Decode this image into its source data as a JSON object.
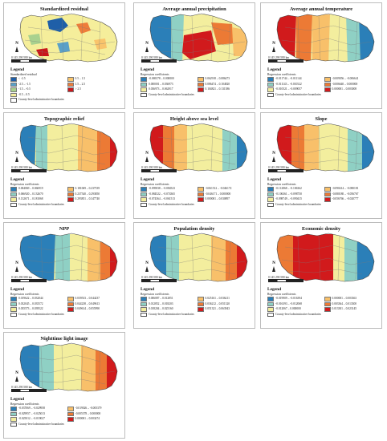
{
  "north_label": "N",
  "scale_label": "0 145 290      580 km",
  "legend_title": "Legend",
  "panels": [
    {
      "title": "Standardized residual",
      "subtitle": "Standardized residual",
      "classes": [
        {
          "label": "< -2.5",
          "color": "#1f5fa8"
        },
        {
          "label": "-2.5 – -1.5",
          "color": "#5aa0c8"
        },
        {
          "label": "-1.5 – -0.5",
          "color": "#a9d18e"
        },
        {
          "label": "-0.5 – 0.5",
          "color": "#f5ee9b"
        },
        {
          "label": "0.5 – 1.5",
          "color": "#f9c46b"
        },
        {
          "label": "1.5 – 2.5",
          "color": "#ee7d3b"
        },
        {
          "label": "> 2.5",
          "color": "#c9161b"
        }
      ],
      "county_label": "County-level administrative boundaries"
    },
    {
      "title": "Average annual precipitation",
      "subtitle": "Regression coefficients",
      "classes": [
        {
          "label": "-0.069378 – 0.000000",
          "color": "#2b7fb8"
        },
        {
          "label": "0.000001 – 0.036973",
          "color": "#8fd0c4"
        },
        {
          "label": "0.036973 – 0.062917",
          "color": "#f3ee9e"
        },
        {
          "label": "0.062918 – 0.086473",
          "color": "#f8c06a"
        },
        {
          "label": "0.086474 – 0.104820",
          "color": "#ec7a35"
        },
        {
          "label": "0.104821 – 0.131386",
          "color": "#d11a1c"
        }
      ],
      "county_label": "County-level administrative boundaries"
    },
    {
      "title": "Average annual temperature",
      "subtitle": "Regression coefficients",
      "classes": [
        {
          "label": "-0.011744 – -0.011144",
          "color": "#2b7fb8"
        },
        {
          "label": "-0.011143 – -0.010522",
          "color": "#8fd0c4"
        },
        {
          "label": "-0.010521 – -0.009057",
          "color": "#f3ee9e"
        },
        {
          "label": "-0.009056 – -0.006641",
          "color": "#f8c06a"
        },
        {
          "label": "-0.006640 – 0.000000",
          "color": "#ec7a35"
        },
        {
          "label": "0.000001 – 0.003008",
          "color": "#d11a1c"
        }
      ],
      "county_label": "County-level administrative boundaries"
    },
    {
      "title": "Topographic relief",
      "subtitle": "Regression coefficients",
      "classes": [
        {
          "label": "0.004069 – 0.066919",
          "color": "#2b7fb8"
        },
        {
          "label": "0.066920 – 0.132670",
          "color": "#8fd0c4"
        },
        {
          "label": "0.132671 – 0.181068",
          "color": "#f3ee9e"
        },
        {
          "label": "0.181069 – 0.237539",
          "color": "#f8c06a"
        },
        {
          "label": "0.237540 – 0.293850",
          "color": "#ec7a35"
        },
        {
          "label": "0.293851 – 0.347740",
          "color": "#d11a1c"
        }
      ],
      "county_label": "County-level administrative boundaries"
    },
    {
      "title": "Height above sea level",
      "subtitle": "Regression coefficients",
      "classes": [
        {
          "label": "-0.095838 – -0.084523",
          "color": "#2b7fb8"
        },
        {
          "label": "-0.084522 – -0.074365",
          "color": "#8fd0c4"
        },
        {
          "label": "-0.074364 – -0.061513",
          "color": "#f3ee9e"
        },
        {
          "label": "-0.061512 – -0.046172",
          "color": "#f8c06a"
        },
        {
          "label": "-0.046171 – 0.000000",
          "color": "#ec7a35"
        },
        {
          "label": "0.000001 – 0.030897",
          "color": "#d11a1c"
        }
      ],
      "county_label": "County-level administrative boundaries"
    },
    {
      "title": "Slope",
      "subtitle": "Regression coefficients",
      "classes": [
        {
          "label": "-0.112868 – -0.106362",
          "color": "#2b7fb8"
        },
        {
          "label": "-0.106361 – -0.098750",
          "color": "#8fd0c4"
        },
        {
          "label": "-0.098749 – -0.090415",
          "color": "#f3ee9e"
        },
        {
          "label": "-0.090414 – -0.080181",
          "color": "#f8c06a"
        },
        {
          "label": "-0.080180 – -0.056767",
          "color": "#ec7a35"
        },
        {
          "label": "-0.056766 – -0.020777",
          "color": "#d11a1c"
        }
      ],
      "county_label": "County-level administrative boundaries"
    },
    {
      "title": "NPP",
      "subtitle": "Regression coefficients",
      "classes": [
        {
          "label": "0.019622 – 0.032044",
          "color": "#2b7fb8"
        },
        {
          "label": "0.032045 – 0.035572",
          "color": "#8fd0c4"
        },
        {
          "label": "0.035573 – 0.039522",
          "color": "#f3ee9e"
        },
        {
          "label": "0.039533 – 0.044237",
          "color": "#f8c06a"
        },
        {
          "label": "0.044238 – 0.049613",
          "color": "#ec7a35"
        },
        {
          "label": "0.049614 – 0.055990",
          "color": "#d11a1c"
        }
      ],
      "county_label": "County-level administrative boundaries"
    },
    {
      "title": "Population density",
      "subtitle": "Regression coefficients",
      "classes": [
        {
          "label": "0.006087 – 0.012851",
          "color": "#2b7fb8"
        },
        {
          "label": "0.012852 – 0.018203",
          "color": "#8fd0c4"
        },
        {
          "label": "0.018204 – 0.025160",
          "color": "#f3ee9e"
        },
        {
          "label": "0.025161 – 0.036211",
          "color": "#f8c06a"
        },
        {
          "label": "0.036212 – 0.051320",
          "color": "#ec7a35"
        },
        {
          "label": "0.051321 – 0.063943",
          "color": "#d11a1c"
        }
      ],
      "county_label": "County-level administrative boundaries"
    },
    {
      "title": "Economic density",
      "subtitle": "Regression coefficients",
      "classes": [
        {
          "label": "-0.019909 – -0.016394",
          "color": "#2b7fb8"
        },
        {
          "label": "-0.016393 – -0.012068",
          "color": "#8fd0c4"
        },
        {
          "label": "-0.012067 – 0.000000",
          "color": "#f3ee9e"
        },
        {
          "label": "0.000001 – 0.003363",
          "color": "#f8c06a"
        },
        {
          "label": "0.003364 – 0.013300",
          "color": "#ec7a35"
        },
        {
          "label": "0.013301 – 0.023145",
          "color": "#d11a1c"
        }
      ],
      "county_label": "County-level administrative boundaries"
    },
    {
      "title": "Nighttime light image",
      "subtitle": "Regression coefficients",
      "classes": [
        {
          "label": "-0.037069 – -0.029958",
          "color": "#2b7fb8"
        },
        {
          "label": "-0.029957 – -0.025013",
          "color": "#8fd0c4"
        },
        {
          "label": "-0.025012 – -0.019027",
          "color": "#f3ee9e"
        },
        {
          "label": "-0.019026 – -0.005379",
          "color": "#f8c06a"
        },
        {
          "label": "-0.005378 – 0.000000",
          "color": "#ec7a35"
        },
        {
          "label": "0.000001 – 0.003474",
          "color": "#d11a1c"
        }
      ],
      "county_label": "County-level administrative boundaries"
    }
  ]
}
